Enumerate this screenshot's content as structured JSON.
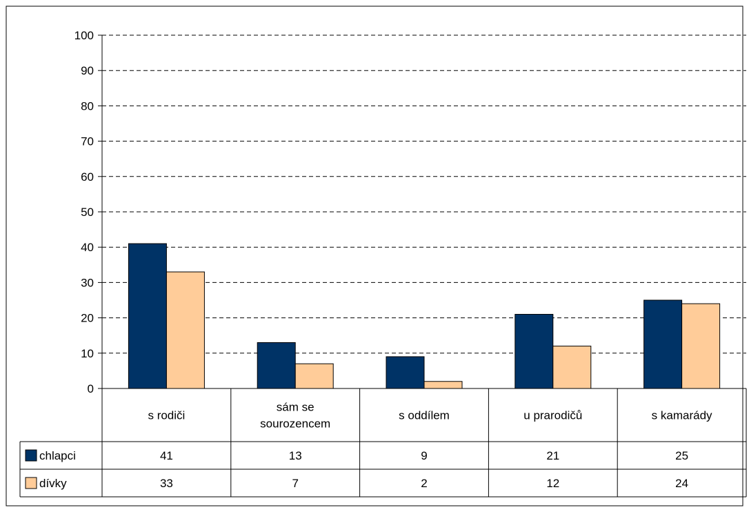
{
  "chart_data": {
    "type": "bar",
    "categories": [
      [
        "s rodiči"
      ],
      [
        "sám se",
        "sourozencem"
      ],
      [
        "s oddílem"
      ],
      [
        "u prarodičů"
      ],
      [
        "s kamarády"
      ]
    ],
    "series": [
      {
        "name": "chlapci",
        "values": [
          41,
          13,
          9,
          21,
          25
        ],
        "color": "#003366"
      },
      {
        "name": "dívky",
        "values": [
          33,
          7,
          2,
          12,
          24
        ],
        "color": "#FFCC99"
      }
    ],
    "ylim": [
      0,
      100
    ],
    "yticks": [
      0,
      10,
      20,
      30,
      40,
      50,
      60,
      70,
      80,
      90,
      100
    ],
    "grid": true,
    "legend": "data-table",
    "title": "",
    "xlabel": "",
    "ylabel": ""
  }
}
